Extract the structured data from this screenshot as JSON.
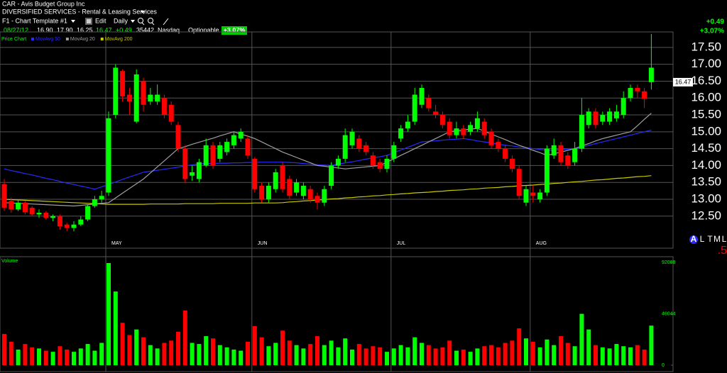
{
  "header": {
    "symbol": "CAR - Avis Budget Group Inc",
    "industry": "DIVERSIFIED SERVICES - Rental & Leasing Services",
    "template": "F1 - Chart Template #1",
    "edit": "Edit",
    "period": "Daily",
    "quote": {
      "date": "08/27/12",
      "open": "16.90",
      "high": "17.90",
      "low": "16.25",
      "last": "16.47",
      "change": "+0.49",
      "volume": "35442",
      "exchange": "Nasdaq"
    },
    "optionable": "Optionable",
    "change_percent": "+3.07%"
  },
  "top_right": {
    "change": "+0.49",
    "change_percent": "+3.07%"
  },
  "buttons": [
    "A",
    "L",
    "T",
    "M",
    "L"
  ],
  "partial_label": ".5",
  "chart_data": {
    "type": "candlestick",
    "legend_title": "Price Chart",
    "up_color": "#00ff00",
    "down_color": "#ff0000",
    "categories": [
      null,
      null,
      null,
      null,
      null,
      null,
      null,
      null,
      null,
      null,
      null,
      null,
      null,
      null,
      null,
      "MAY",
      null,
      null,
      null,
      null,
      null,
      null,
      null,
      null,
      null,
      null,
      null,
      null,
      null,
      null,
      null,
      null,
      null,
      null,
      null,
      null,
      "JUN",
      null,
      null,
      null,
      null,
      null,
      null,
      null,
      null,
      null,
      null,
      null,
      null,
      null,
      null,
      null,
      null,
      null,
      null,
      null,
      "JUL",
      null,
      null,
      null,
      null,
      null,
      null,
      null,
      null,
      null,
      null,
      null,
      null,
      null,
      null,
      null,
      null,
      null,
      null,
      null,
      "AUG",
      null,
      null,
      null,
      null,
      null,
      null,
      null,
      null,
      null,
      null,
      null,
      null,
      null,
      null,
      null,
      null,
      null
    ],
    "open": [
      13.45,
      12.95,
      12.7,
      12.9,
      12.75,
      12.55,
      12.6,
      12.45,
      12.5,
      12.25,
      12.15,
      12.25,
      12.4,
      12.8,
      13.0,
      13.2,
      15.5,
      16.8,
      16.1,
      15.3,
      16.5,
      16.1,
      15.9,
      16.0,
      15.8,
      15.2,
      14.5,
      13.7,
      13.6,
      14.0,
      14.6,
      14.2,
      14.4,
      14.6,
      14.8,
      14.8,
      14.2,
      13.4,
      13.0,
      13.3,
      14.0,
      13.6,
      13.5,
      13.1,
      13.3,
      13.1,
      12.9,
      13.4,
      14.0,
      14.2,
      14.6,
      14.8,
      14.6,
      14.3,
      14.1,
      13.9,
      14.2,
      14.8,
      15.1,
      15.3,
      15.8,
      16.0,
      15.6,
      15.5,
      15.3,
      14.9,
      15.1,
      15.0,
      15.1,
      15.3,
      15.0,
      14.7,
      14.5,
      14.2,
      13.9,
      12.9,
      13.2,
      13.0,
      13.2,
      14.3,
      14.6,
      14.3,
      14.1,
      14.5,
      15.2,
      15.6,
      15.3,
      15.3,
      15.4,
      15.5,
      16.0,
      16.3,
      16.2,
      16.9
    ],
    "high": [
      13.6,
      13.05,
      13.0,
      12.95,
      12.8,
      12.7,
      12.65,
      12.55,
      12.55,
      12.3,
      12.35,
      12.5,
      12.85,
      13.1,
      13.25,
      15.6,
      17.0,
      16.85,
      16.3,
      16.85,
      16.6,
      16.3,
      16.4,
      16.1,
      15.9,
      15.3,
      14.6,
      14.0,
      14.2,
      14.8,
      14.7,
      14.7,
      14.8,
      15.0,
      15.1,
      14.9,
      14.25,
      13.5,
      13.5,
      13.9,
      14.1,
      13.7,
      13.6,
      13.5,
      13.4,
      13.2,
      13.4,
      14.1,
      14.3,
      15.1,
      15.1,
      14.9,
      14.7,
      14.4,
      14.2,
      14.3,
      14.7,
      15.2,
      15.5,
      16.3,
      16.4,
      16.1,
      15.8,
      15.6,
      15.4,
      15.3,
      15.2,
      15.3,
      15.6,
      15.4,
      15.1,
      14.8,
      14.6,
      14.3,
      14.0,
      13.4,
      13.4,
      13.3,
      14.6,
      14.8,
      14.7,
      14.4,
      14.7,
      16.0,
      15.7,
      15.7,
      15.6,
      15.7,
      15.8,
      16.2,
      16.4,
      16.4,
      16.3,
      17.9
    ],
    "low": [
      12.65,
      12.6,
      12.65,
      12.55,
      12.5,
      12.45,
      12.4,
      12.35,
      12.1,
      12.05,
      12.05,
      12.2,
      12.35,
      12.75,
      12.9,
      13.1,
      15.4,
      15.9,
      15.5,
      15.25,
      15.6,
      15.8,
      15.8,
      15.4,
      15.2,
      14.4,
      13.5,
      13.55,
      13.5,
      13.95,
      13.9,
      14.1,
      14.3,
      14.5,
      14.7,
      14.2,
      13.2,
      12.9,
      12.9,
      13.2,
      13.2,
      13.0,
      13.1,
      13.0,
      12.9,
      12.7,
      12.8,
      13.3,
      13.9,
      14.1,
      14.5,
      14.4,
      14.3,
      13.9,
      13.8,
      13.8,
      14.1,
      14.7,
      15.0,
      15.2,
      15.7,
      15.6,
      15.4,
      15.1,
      14.8,
      14.8,
      14.8,
      14.9,
      15.0,
      14.8,
      14.5,
      14.4,
      14.1,
      13.8,
      13.0,
      12.8,
      12.9,
      12.9,
      13.1,
      14.2,
      14.0,
      13.9,
      14.0,
      14.4,
      15.1,
      15.1,
      15.2,
      15.2,
      15.3,
      15.4,
      15.9,
      16.0,
      15.7,
      16.25
    ],
    "close": [
      12.75,
      12.7,
      12.9,
      12.62,
      12.55,
      12.6,
      12.45,
      12.5,
      12.2,
      12.15,
      12.25,
      12.4,
      12.8,
      13.0,
      13.1,
      15.4,
      16.9,
      16.05,
      15.9,
      16.7,
      15.8,
      15.9,
      16.1,
      15.5,
      15.3,
      14.5,
      13.6,
      13.8,
      14.1,
      14.6,
      14.0,
      14.6,
      14.7,
      14.9,
      15.0,
      14.3,
      13.3,
      13.0,
      13.4,
      13.8,
      13.3,
      13.1,
      13.2,
      13.4,
      13.0,
      12.9,
      13.3,
      14.0,
      14.2,
      14.9,
      15.0,
      14.5,
      14.4,
      14.0,
      13.9,
      14.2,
      14.6,
      15.1,
      15.3,
      16.1,
      16.3,
      15.7,
      15.5,
      15.2,
      14.9,
      15.1,
      14.9,
      15.2,
      15.4,
      14.9,
      14.6,
      14.5,
      14.2,
      13.9,
      13.1,
      13.3,
      13.1,
      13.2,
      14.5,
      14.6,
      14.1,
      14.0,
      14.5,
      15.5,
      15.6,
      15.2,
      15.5,
      15.6,
      15.6,
      16.0,
      16.3,
      16.2,
      15.98,
      16.47
    ],
    "ylim": [
      11.55,
      17.96
    ],
    "yticks": [
      {
        "value": 12.5,
        "label": "12.50"
      },
      {
        "value": 13,
        "label": "13.00"
      },
      {
        "value": 13.5,
        "label": "13.50"
      },
      {
        "value": 14,
        "label": "14.00"
      },
      {
        "value": 14.5,
        "label": "14.50"
      },
      {
        "value": 15,
        "label": "15.00"
      },
      {
        "value": 15.5,
        "label": "15.50"
      },
      {
        "value": 16,
        "label": "16.00"
      },
      {
        "value": 16.5,
        "label": "16.50"
      },
      {
        "value": 17,
        "label": "17.00"
      },
      {
        "value": 17.5,
        "label": "17.50"
      }
    ],
    "grid": true,
    "last_price": {
      "value": 16.47,
      "label": "16.47"
    },
    "moving_averages": [
      {
        "name": "MovAvg 50",
        "color": "#2a2aff",
        "values": [
          13.9,
          13.85,
          13.81,
          13.76,
          13.72,
          13.67,
          13.62,
          13.58,
          13.53,
          13.48,
          13.44,
          13.39,
          13.35,
          13.3,
          13.37,
          13.44,
          13.51,
          13.59,
          13.66,
          13.73,
          13.8,
          13.83,
          13.86,
          13.89,
          13.92,
          13.95,
          13.99,
          14.02,
          14.05,
          14.06,
          14.06,
          14.07,
          14.07,
          14.08,
          14.08,
          14.09,
          14.09,
          14.1,
          14.1,
          14.1,
          14.1,
          14.09,
          14.08,
          14.06,
          14.04,
          14.02,
          14.01,
          14.0,
          14.04,
          14.08,
          14.11,
          14.15,
          14.19,
          14.23,
          14.26,
          14.3,
          14.38,
          14.46,
          14.54,
          14.62,
          14.7,
          14.72,
          14.73,
          14.75,
          14.77,
          14.78,
          14.8,
          14.77,
          14.73,
          14.7,
          14.67,
          14.63,
          14.6,
          14.58,
          14.55,
          14.53,
          14.5,
          14.48,
          14.45,
          14.46,
          14.47,
          14.49,
          14.5,
          14.55,
          14.6,
          14.65,
          14.7,
          14.75,
          14.8,
          14.85,
          14.9,
          14.95,
          15.0,
          15.05
        ]
      },
      {
        "name": "MovAvg 20",
        "color": "#a0a0a0",
        "values": [
          12.9,
          12.89,
          12.88,
          12.87,
          12.86,
          12.85,
          12.84,
          12.83,
          12.82,
          12.81,
          12.8,
          12.82,
          12.84,
          12.86,
          12.88,
          12.9,
          13.04,
          13.18,
          13.32,
          13.46,
          13.6,
          13.78,
          13.96,
          14.14,
          14.32,
          14.5,
          14.56,
          14.63,
          14.69,
          14.75,
          14.81,
          14.88,
          14.94,
          15.0,
          14.93,
          14.87,
          14.8,
          14.7,
          14.6,
          14.5,
          14.4,
          14.32,
          14.24,
          14.16,
          14.08,
          14.0,
          13.98,
          13.95,
          13.93,
          13.9,
          13.92,
          13.94,
          13.96,
          13.98,
          14.0,
          14.1,
          14.2,
          14.3,
          14.4,
          14.5,
          14.6,
          14.7,
          14.8,
          14.9,
          15.0,
          15.03,
          15.05,
          15.08,
          15.1,
          15.02,
          14.93,
          14.85,
          14.77,
          14.68,
          14.6,
          14.53,
          14.45,
          14.38,
          14.3,
          14.35,
          14.4,
          14.45,
          14.5,
          14.58,
          14.65,
          14.73,
          14.8,
          14.85,
          14.9,
          14.95,
          15.0,
          15.18,
          15.37,
          15.55
        ]
      },
      {
        "name": "MovAvg 200",
        "color": "#c8c800",
        "values": [
          13.0,
          12.99,
          12.98,
          12.97,
          12.96,
          12.95,
          12.94,
          12.93,
          12.92,
          12.91,
          12.9,
          12.89,
          12.88,
          12.87,
          12.86,
          12.85,
          12.85,
          12.85,
          12.85,
          12.85,
          12.85,
          12.86,
          12.86,
          12.86,
          12.86,
          12.86,
          12.87,
          12.87,
          12.87,
          12.87,
          12.87,
          12.88,
          12.88,
          12.88,
          12.88,
          12.88,
          12.89,
          12.89,
          12.89,
          12.89,
          12.9,
          12.92,
          12.93,
          12.95,
          12.96,
          12.98,
          12.99,
          13.01,
          13.02,
          13.04,
          13.05,
          13.07,
          13.08,
          13.1,
          13.11,
          13.13,
          13.14,
          13.16,
          13.17,
          13.19,
          13.2,
          13.21,
          13.23,
          13.24,
          13.26,
          13.27,
          13.28,
          13.3,
          13.31,
          13.33,
          13.34,
          13.35,
          13.37,
          13.38,
          13.4,
          13.41,
          13.42,
          13.44,
          13.45,
          13.47,
          13.48,
          13.5,
          13.52,
          13.53,
          13.55,
          13.57,
          13.58,
          13.6,
          13.62,
          13.63,
          13.65,
          13.67,
          13.68,
          13.7
        ]
      }
    ],
    "volume": {
      "title": "Volume",
      "ylim": [
        0,
        92088
      ],
      "yticks": [
        0,
        46044,
        92088
      ],
      "values": [
        28000,
        21000,
        14000,
        19000,
        16000,
        15000,
        13000,
        12000,
        17000,
        14000,
        12000,
        15000,
        19000,
        13000,
        20000,
        91500,
        66000,
        38000,
        27000,
        32000,
        25000,
        18000,
        15000,
        20000,
        22000,
        30000,
        49000,
        20000,
        19000,
        26000,
        24000,
        18000,
        16000,
        14000,
        13000,
        21000,
        35000,
        25000,
        17000,
        20000,
        31000,
        22000,
        18000,
        15000,
        19000,
        26000,
        18000,
        22000,
        16000,
        24000,
        14000,
        19000,
        15000,
        17000,
        16000,
        12000,
        15000,
        18000,
        16000,
        25000,
        20000,
        18000,
        15000,
        16000,
        22000,
        13000,
        14000,
        12000,
        15000,
        17000,
        18000,
        16000,
        20000,
        22000,
        33000,
        24000,
        21000,
        16000,
        23000,
        18000,
        26000,
        20000,
        17000,
        46000,
        32000,
        18000,
        16000,
        15000,
        19000,
        17000,
        16000,
        18000,
        14000,
        35442
      ]
    }
  }
}
